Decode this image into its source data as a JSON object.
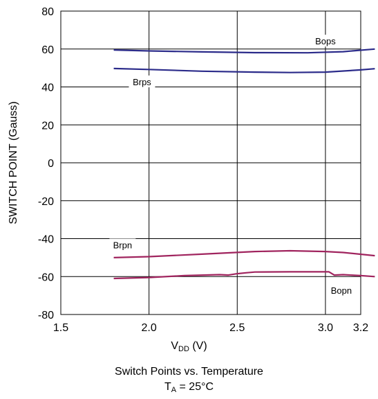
{
  "chart_data": {
    "type": "line",
    "title": "Switch Points vs. Temperature",
    "subtitle": {
      "prefix": "T",
      "sub": "A",
      "suffix": " = 25°C"
    },
    "xlabel": {
      "prefix": "V",
      "sub": "DD",
      "suffix": " (V)"
    },
    "ylabel": "SWITCH POINT (Gauss)",
    "xlim": [
      1.5,
      3.2
    ],
    "ylim": [
      -80,
      80
    ],
    "x_ticks": [
      "1.5",
      "2.0",
      "2.5",
      "3.0",
      "3.2"
    ],
    "x_tick_values": [
      1.5,
      2.0,
      2.5,
      3.0,
      3.2
    ],
    "y_ticks": [
      "80",
      "60",
      "40",
      "20",
      "0",
      "-20",
      "-40",
      "-60",
      "-80"
    ],
    "y_tick_values": [
      80,
      60,
      40,
      20,
      0,
      -20,
      -40,
      -60,
      -80
    ],
    "grid": true,
    "series": [
      {
        "name": "Bops",
        "color": "#2b2b8a",
        "x": [
          1.8,
          2.0,
          2.3,
          2.6,
          2.9,
          3.1,
          3.28
        ],
        "y": [
          59.5,
          59.0,
          58.5,
          58.1,
          58.0,
          58.6,
          60.0
        ]
      },
      {
        "name": "Brps",
        "color": "#2b2b8a",
        "x": [
          1.8,
          2.0,
          2.3,
          2.6,
          2.8,
          3.0,
          3.2,
          3.28
        ],
        "y": [
          49.7,
          49.2,
          48.3,
          47.8,
          47.6,
          47.8,
          49.0,
          49.6
        ]
      },
      {
        "name": "Brpn",
        "color": "#a0245e",
        "x": [
          1.8,
          2.0,
          2.3,
          2.6,
          2.8,
          3.0,
          3.1,
          3.28
        ],
        "y": [
          -50.0,
          -49.5,
          -48.2,
          -46.8,
          -46.4,
          -46.8,
          -47.3,
          -49.0
        ]
      },
      {
        "name": "Bopn",
        "color": "#a0245e",
        "x": [
          1.8,
          2.0,
          2.2,
          2.4,
          2.45,
          2.5,
          2.55,
          2.6,
          2.8,
          3.0,
          3.02,
          3.05,
          3.1,
          3.2,
          3.28
        ],
        "y": [
          -61.0,
          -60.5,
          -59.5,
          -59.0,
          -59.2,
          -58.5,
          -58.0,
          -57.6,
          -57.5,
          -57.5,
          -57.5,
          -59.2,
          -59.0,
          -59.5,
          -60.0
        ]
      }
    ]
  }
}
